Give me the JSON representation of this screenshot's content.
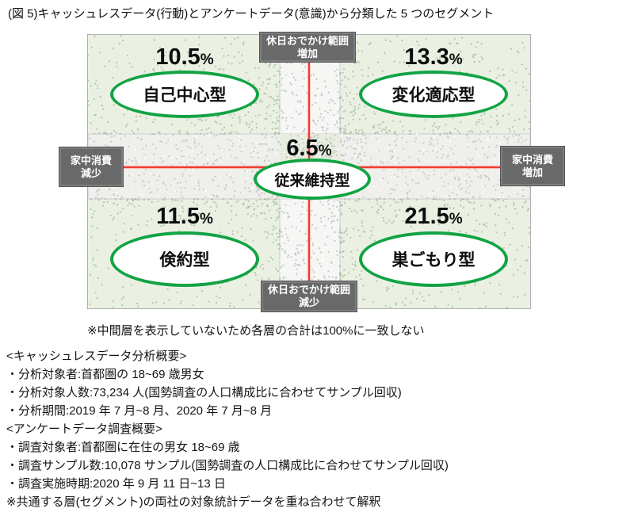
{
  "title": "(図 5)キャッシュレスデータ(行動)とアンケートデータ(意識)から分類した 5 つのセグメント",
  "percent_unit": "%",
  "chart_data": {
    "type": "scatter",
    "subtype": "quadrant-segment-map",
    "title": "キャッシュレスデータ(行動)とアンケートデータ(意識)から分類した 5 つのセグメント",
    "segments": [
      {
        "name": "自己中心型",
        "percent": 10.5,
        "position": "top-left"
      },
      {
        "name": "変化適応型",
        "percent": 13.3,
        "position": "top-right"
      },
      {
        "name": "従来維持型",
        "percent": 6.5,
        "position": "center"
      },
      {
        "name": "倹約型",
        "percent": 11.5,
        "position": "bottom-left"
      },
      {
        "name": "巣ごもり型",
        "percent": 21.5,
        "position": "bottom-right"
      }
    ],
    "axes": {
      "x_negative": "家中消費減少",
      "x_positive": "家中消費増加",
      "y_positive": "休日おでかけ範囲増加",
      "y_negative": "休日おでかけ範囲減少"
    },
    "legend_position": "none",
    "grid": false,
    "note": "※中間層を表示していないため各層の合計は100%に一致しない"
  },
  "axis_boxes": {
    "top": {
      "line1": "休日おでかけ範囲",
      "line2": "増加"
    },
    "bottom": {
      "line1": "休日おでかけ範囲",
      "line2": "減少"
    },
    "left": {
      "line1": "家中消費",
      "line2": "減少"
    },
    "right": {
      "line1": "家中消費",
      "line2": "増加"
    }
  },
  "mid_note": "※中間層を表示していないため各層の合計は100%に一致しない",
  "footer": {
    "lines": [
      "<キャッシュレスデータ分析概要>",
      "・分析対象者:首都圏の 18~69 歳男女",
      "・分析対象人数:73,234 人(国勢調査の人口構成比に合わせてサンプル回収)",
      "・分析期間:2019 年 7 月~8 月、2020 年 7 月~8 月",
      "<アンケートデータ調査概要>",
      "・調査対象者:首都圏に在住の男女 18~69 歳",
      "・調査サンプル数:10,078 サンプル(国勢調査の人口構成比に合わせてサンプル回収)",
      "・調査実施時期:2020 年 9 月 11 日~13 日",
      "※共通する層(セグメント)の両社の対象統計データを重ね合わせて解釈"
    ]
  },
  "colors": {
    "segment_green": "#12a344",
    "crosshair_red": "#ef3b33",
    "axis_box_gray": "#696969",
    "quadrant_green": "#eaf1e3"
  }
}
